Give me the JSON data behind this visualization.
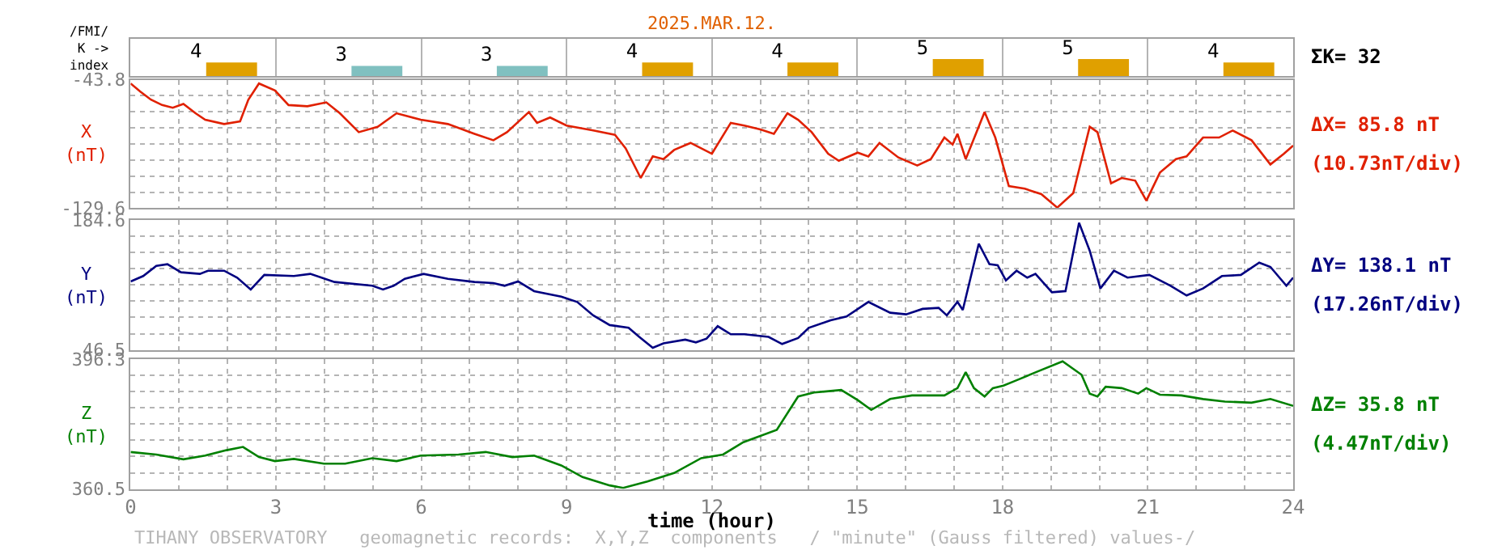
{
  "chart_data": [
    {
      "type": "bar",
      "title": "2025.MAR.12.",
      "ylabel": "/FMI/\nK ->\nindex",
      "categories": [
        null,
        null,
        null,
        null,
        null,
        null,
        null,
        null
      ],
      "values": [
        4,
        3,
        3,
        4,
        4,
        5,
        5,
        4
      ],
      "colors": [
        "#e0a000",
        "#80c0c0",
        "#80c0c0",
        "#e0a000",
        "#e0a000",
        "#e0a000",
        "#e0a000",
        "#e0a000"
      ],
      "data_labels": true,
      "grid": "x",
      "tick_labels": false,
      "annotations": [
        "ΣK= 32"
      ]
    },
    {
      "type": "line",
      "ylabel": "X\n(nT)",
      "line_style": "solid",
      "grid": true,
      "tick_labels": "y",
      "xlim": [
        0,
        24
      ],
      "xticks": [
        0,
        {
          "value": 1,
          "label": null
        },
        {
          "value": 2,
          "label": null
        },
        3,
        {
          "value": 4,
          "label": null
        },
        {
          "value": 5,
          "label": null
        },
        6,
        {
          "value": 7,
          "label": null
        },
        {
          "value": 8,
          "label": null
        },
        9,
        {
          "value": 10,
          "label": null
        },
        {
          "value": 11,
          "label": null
        },
        12,
        {
          "value": 13,
          "label": null
        },
        {
          "value": 14,
          "label": null
        },
        15,
        {
          "value": 16,
          "label": null
        },
        {
          "value": 17,
          "label": null
        },
        18,
        {
          "value": 19,
          "label": null
        },
        {
          "value": 20,
          "label": null
        },
        21,
        {
          "value": 22,
          "label": null
        },
        {
          "value": 23,
          "label": null
        },
        24
      ],
      "ylim": [
        -129.6,
        -43.8
      ],
      "yticks": [
        -129.6,
        {
          "value": -118.875,
          "label": null
        },
        {
          "value": -108.15,
          "label": null
        },
        {
          "value": -97.425,
          "label": null
        },
        {
          "value": -86.7,
          "label": null
        },
        {
          "value": -75.975,
          "label": null
        },
        {
          "value": -65.25,
          "label": null
        },
        {
          "value": -54.525,
          "label": null
        },
        -43.8
      ],
      "annotations": [
        "ΔX= 85.8 nT",
        "(10.73nT/div)"
      ],
      "series": [
        {
          "color": "#e02000",
          "x": [
            0,
            0.2,
            0.42,
            0.65,
            0.87,
            1.09,
            1.34,
            1.54,
            1.93,
            2.26,
            2.43,
            2.65,
            2.98,
            3.26,
            3.65,
            4.04,
            4.32,
            4.71,
            5.1,
            5.49,
            5.99,
            6.55,
            7.1,
            7.49,
            7.77,
            8.22,
            8.39,
            8.66,
            9.0,
            9.55,
            10.0,
            10.22,
            10.53,
            10.78,
            11.0,
            11.22,
            11.56,
            12.0,
            12.39,
            12.67,
            13.0,
            13.28,
            13.56,
            13.78,
            14.06,
            14.4,
            14.62,
            15.01,
            15.23,
            15.46,
            15.85,
            16.24,
            16.52,
            16.8,
            16.97,
            17.07,
            17.24,
            17.63,
            17.85,
            18.13,
            18.46,
            18.8,
            19.13,
            19.46,
            19.8,
            19.96,
            20.24,
            20.46,
            20.74,
            20.97,
            21.25,
            21.58,
            21.8,
            22.14,
            22.47,
            22.75,
            23.14,
            23.53,
            23.81,
            24
          ],
          "values": [
            -46.3,
            -51.7,
            -57.1,
            -60.7,
            -62.5,
            -60.0,
            -66.2,
            -70.5,
            -73.4,
            -71.6,
            -57.1,
            -46.3,
            -51.0,
            -60.7,
            -61.5,
            -58.9,
            -66.2,
            -78.8,
            -75.2,
            -66.2,
            -70.5,
            -73.4,
            -79.9,
            -84.2,
            -78.8,
            -65.4,
            -72.6,
            -69.0,
            -74.4,
            -77.7,
            -80.6,
            -89.6,
            -109.4,
            -95.0,
            -96.8,
            -90.7,
            -86.0,
            -93.2,
            -72.6,
            -74.4,
            -77.0,
            -79.9,
            -66.2,
            -70.5,
            -78.8,
            -93.2,
            -97.9,
            -92.5,
            -95.0,
            -86.0,
            -95.7,
            -101.1,
            -96.8,
            -82.4,
            -87.1,
            -79.9,
            -96.8,
            -65.4,
            -82.4,
            -114.8,
            -116.6,
            -120.2,
            -129.2,
            -119.5,
            -75.2,
            -78.8,
            -113.0,
            -109.4,
            -111.2,
            -124.6,
            -105.8,
            -96.8,
            -95.0,
            -82.4,
            -82.4,
            -77.7,
            -84.2,
            -100.4,
            -93.2,
            -87.8
          ]
        }
      ]
    },
    {
      "type": "line",
      "ylabel": "Y\n(nT)",
      "line_style": "solid",
      "grid": true,
      "tick_labels": "y",
      "xlim": [
        0,
        24
      ],
      "xticks": [
        0,
        {
          "value": 1,
          "label": null
        },
        {
          "value": 2,
          "label": null
        },
        3,
        {
          "value": 4,
          "label": null
        },
        {
          "value": 5,
          "label": null
        },
        6,
        {
          "value": 7,
          "label": null
        },
        {
          "value": 8,
          "label": null
        },
        9,
        {
          "value": 10,
          "label": null
        },
        {
          "value": 11,
          "label": null
        },
        12,
        {
          "value": 13,
          "label": null
        },
        {
          "value": 14,
          "label": null
        },
        15,
        {
          "value": 16,
          "label": null
        },
        {
          "value": 17,
          "label": null
        },
        18,
        {
          "value": 19,
          "label": null
        },
        {
          "value": 20,
          "label": null
        },
        21,
        {
          "value": 22,
          "label": null
        },
        {
          "value": 23,
          "label": null
        },
        24
      ],
      "ylim": [
        46.5,
        184.6
      ],
      "yticks": [
        46.5,
        {
          "value": 63.7625,
          "label": null
        },
        {
          "value": 81.025,
          "label": null
        },
        {
          "value": 98.2875,
          "label": null
        },
        {
          "value": 115.55,
          "label": null
        },
        {
          "value": 132.8125,
          "label": null
        },
        {
          "value": 150.075,
          "label": null
        },
        {
          "value": 167.3375,
          "label": null
        },
        184.6
      ],
      "annotations": [
        "ΔY= 138.1 nT",
        "(17.26nT/div)"
      ],
      "series": [
        {
          "color": "#000080",
          "x": [
            0,
            0.26,
            0.53,
            0.76,
            1.04,
            1.43,
            1.6,
            1.93,
            2.2,
            2.48,
            2.76,
            3.37,
            3.71,
            4.21,
            4.99,
            5.21,
            5.43,
            5.66,
            6.05,
            6.55,
            7.1,
            7.49,
            7.72,
            8.0,
            8.33,
            8.89,
            9.22,
            9.55,
            9.89,
            10.28,
            10.5,
            10.78,
            11.0,
            11.45,
            11.67,
            11.89,
            12.12,
            12.39,
            12.67,
            13.17,
            13.45,
            13.78,
            14.0,
            14.45,
            14.78,
            15.23,
            15.68,
            16.01,
            16.35,
            16.68,
            16.85,
            17.07,
            17.18,
            17.51,
            17.73,
            17.9,
            18.07,
            18.29,
            18.51,
            18.68,
            19.02,
            19.3,
            19.58,
            19.8,
            20.02,
            20.3,
            20.58,
            21.03,
            21.47,
            21.8,
            22.14,
            22.53,
            22.92,
            23.3,
            23.53,
            23.86,
            24
          ],
          "values": [
            119.3,
            125.0,
            135.9,
            137.6,
            129.0,
            127.3,
            130.7,
            130.7,
            123.3,
            110.7,
            126.2,
            125.0,
            127.3,
            118.7,
            114.7,
            110.7,
            114.7,
            122.1,
            127.3,
            122.1,
            118.7,
            117.6,
            114.7,
            119.3,
            109.0,
            103.2,
            97.5,
            83.2,
            72.9,
            70.0,
            60.3,
            48.8,
            53.4,
            57.4,
            54.5,
            58.5,
            71.7,
            63.1,
            63.1,
            60.3,
            52.8,
            59.1,
            70.0,
            78.0,
            82.0,
            97.5,
            86.0,
            84.3,
            90.1,
            91.2,
            83.2,
            97.5,
            88.9,
            159.4,
            137.6,
            136.5,
            120.4,
            130.7,
            123.3,
            127.3,
            107.8,
            109.0,
            181.7,
            151.9,
            111.8,
            130.7,
            123.3,
            126.2,
            114.7,
            104.4,
            111.8,
            125.0,
            126.2,
            139.3,
            134.7,
            114.7,
            123.3
          ]
        }
      ]
    },
    {
      "type": "line",
      "ylabel": "Z\n(nT)",
      "xlabel": "time (hour)",
      "line_style": "solid",
      "grid": true,
      "xlim": [
        0,
        24
      ],
      "xticks": [
        0,
        {
          "value": 1,
          "label": null
        },
        {
          "value": 2,
          "label": null
        },
        3,
        {
          "value": 4,
          "label": null
        },
        {
          "value": 5,
          "label": null
        },
        6,
        {
          "value": 7,
          "label": null
        },
        {
          "value": 8,
          "label": null
        },
        9,
        {
          "value": 10,
          "label": null
        },
        {
          "value": 11,
          "label": null
        },
        12,
        {
          "value": 13,
          "label": null
        },
        {
          "value": 14,
          "label": null
        },
        15,
        {
          "value": 16,
          "label": null
        },
        {
          "value": 17,
          "label": null
        },
        18,
        {
          "value": 19,
          "label": null
        },
        {
          "value": 20,
          "label": null
        },
        21,
        {
          "value": 22,
          "label": null
        },
        {
          "value": 23,
          "label": null
        },
        24
      ],
      "ylim": [
        360.5,
        396.3
      ],
      "yticks": [
        360.5,
        {
          "value": 364.975,
          "label": null
        },
        {
          "value": 369.45,
          "label": null
        },
        {
          "value": 373.925,
          "label": null
        },
        {
          "value": 378.4,
          "label": null
        },
        {
          "value": 382.875,
          "label": null
        },
        {
          "value": 387.35,
          "label": null
        },
        {
          "value": 391.825,
          "label": null
        },
        396.3
      ],
      "annotations": [
        "ΔZ= 35.8 nT",
        "(4.47nT/div)",
        "TIHANY OBSERVATORY   geomagnetic records:  X,Y,Z  components   / \"minute\" (Gauss filtered) values-/"
      ],
      "series": [
        {
          "color": "#008000",
          "x": [
            0,
            0.53,
            1.09,
            1.54,
            1.98,
            2.32,
            2.65,
            2.98,
            3.37,
            3.99,
            4.43,
            4.99,
            5.49,
            5.99,
            6.77,
            7.33,
            7.88,
            8.33,
            8.89,
            9.33,
            9.89,
            10.17,
            10.67,
            11.22,
            11.78,
            12.23,
            12.65,
            13.34,
            13.78,
            14.11,
            14.67,
            15.01,
            15.29,
            15.68,
            16.13,
            16.8,
            17.07,
            17.24,
            17.41,
            17.63,
            17.8,
            18.02,
            18.24,
            18.69,
            19.24,
            19.63,
            19.8,
            19.96,
            20.13,
            20.46,
            20.8,
            20.97,
            21.25,
            21.69,
            22.14,
            22.59,
            23.14,
            23.53,
            24
          ],
          "values": [
            370.7,
            370.0,
            368.7,
            369.7,
            371.2,
            372.1,
            369.3,
            368.2,
            368.8,
            367.5,
            367.5,
            369.0,
            368.2,
            369.7,
            370.0,
            370.7,
            369.3,
            369.7,
            367.0,
            363.8,
            361.5,
            360.8,
            362.6,
            364.9,
            369.0,
            370.0,
            373.4,
            376.8,
            386.0,
            387.1,
            387.8,
            385.0,
            382.3,
            385.3,
            386.3,
            386.3,
            388.3,
            392.7,
            388.3,
            386.0,
            388.3,
            389.0,
            390.2,
            392.7,
            395.7,
            392.0,
            386.8,
            386.0,
            388.7,
            388.3,
            386.8,
            388.3,
            386.5,
            386.3,
            385.3,
            384.6,
            384.3,
            385.3,
            383.4
          ]
        }
      ]
    }
  ]
}
